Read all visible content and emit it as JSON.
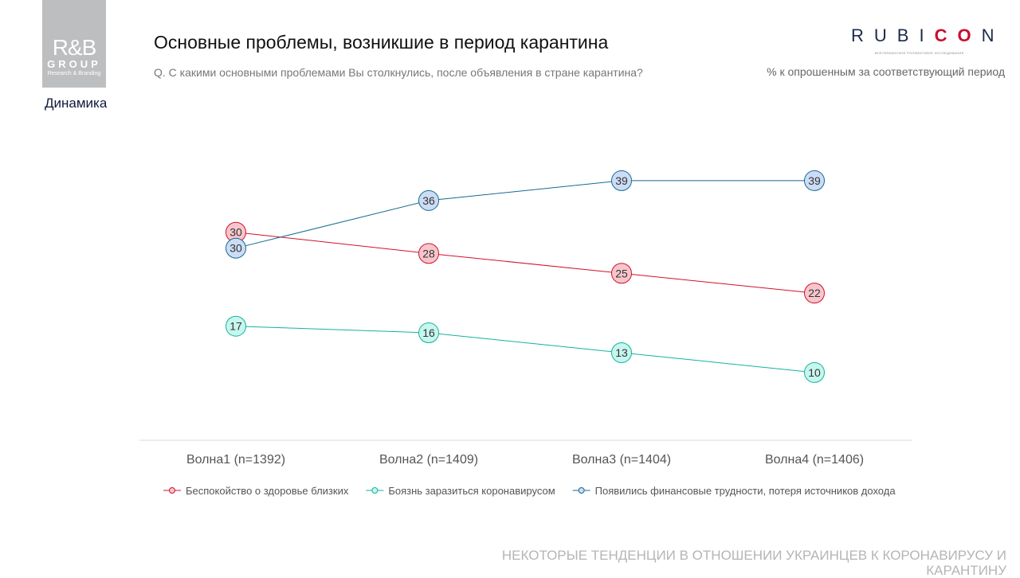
{
  "logo": {
    "line1": "R&B",
    "line2": "GROUP",
    "line3": "Research & Branding"
  },
  "section": "Динамика",
  "title": "Основные проблемы, возникшие в период карантина",
  "subtitle": "Q. С какими основными проблемами Вы столкнулись, после объявления в стране карантина?",
  "brand": {
    "name_a": "RUBI",
    "name_b": "CO",
    "name_c": "N",
    "tagline": "ВСЕУКРАИНСКОЕ РОЛЛИНГОВОЕ ИССЛЕДОВАНИЕ"
  },
  "note": "% к опрошенным за соответствующий период",
  "footer": "НЕКОТОРЫЕ ТЕНДЕНЦИИ В ОТНОШЕНИИ УКРАИНЦЕВ К КОРОНАВИРУСУ И КАРАНТИНУ",
  "chart_data": {
    "type": "line",
    "categories": [
      "Волна1 (n=1392)",
      "Волна2 (n=1409)",
      "Волна3 (n=1404)",
      "Волна4 (n=1406)"
    ],
    "series": [
      {
        "name": "Беспокойство о здоровье близких",
        "values": [
          30,
          28,
          25,
          22
        ],
        "color": "#d0112b",
        "fill": "#f7c6cc"
      },
      {
        "name": "Боязнь заразиться коронавирусом",
        "values": [
          17,
          16,
          13,
          10
        ],
        "color": "#13b39a",
        "fill": "#c6f6ee"
      },
      {
        "name": "Появились финансовые трудности, потеря источников дохода",
        "values": [
          30,
          36,
          39,
          39
        ],
        "color": "#156b91",
        "fill": "#cddcf5"
      }
    ],
    "ylim": [
      0,
      45
    ],
    "grid": false,
    "legend": "bottom"
  }
}
